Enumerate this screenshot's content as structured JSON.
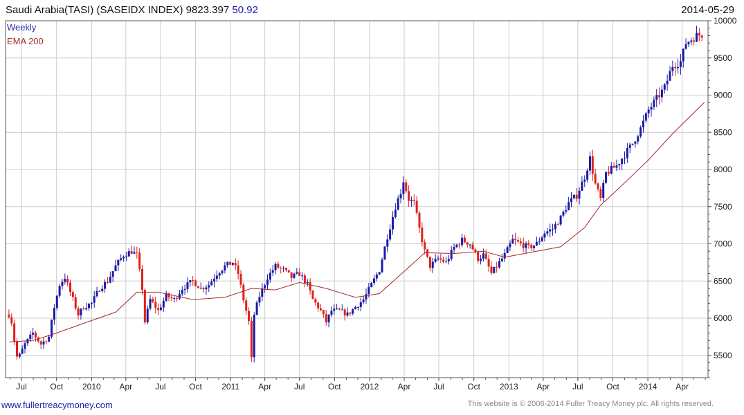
{
  "header": {
    "title": "Saudi Arabia(TASI) (SASEIDX INDEX) 9823.397",
    "change": "50.92",
    "date": "2014-05-29"
  },
  "legend": {
    "weekly": "Weekly",
    "ema": "EMA 200"
  },
  "footer": {
    "url": "www.fullertreacymoney.com",
    "copyright": "This website is © 2008-2014 Fuller Treacy Money plc. All rights reserved."
  },
  "colors": {
    "up": "#1a1aa8",
    "down": "#e0201c",
    "ema": "#a52a2a",
    "grid": "#cccccc",
    "frame": "#555555"
  },
  "chart_data": {
    "type": "candlestick",
    "frequency": "weekly",
    "grid": true,
    "ylim": [
      5200,
      10000
    ],
    "y_axis_side": "right",
    "y_ticks": [
      5500,
      6000,
      6500,
      7000,
      7500,
      8000,
      8500,
      9000,
      9500,
      10000
    ],
    "x_ticks": [
      {
        "label": "Jul",
        "date": "2009-07-01"
      },
      {
        "label": "Oct",
        "date": "2009-10-01"
      },
      {
        "label": "2010",
        "date": "2010-01-01"
      },
      {
        "label": "Apr",
        "date": "2010-04-01"
      },
      {
        "label": "Jul",
        "date": "2010-07-01"
      },
      {
        "label": "Oct",
        "date": "2010-10-01"
      },
      {
        "label": "2011",
        "date": "2011-01-01"
      },
      {
        "label": "Apr",
        "date": "2011-04-01"
      },
      {
        "label": "Jul",
        "date": "2011-07-01"
      },
      {
        "label": "Oct",
        "date": "2011-10-01"
      },
      {
        "label": "2012",
        "date": "2012-01-01"
      },
      {
        "label": "Apr",
        "date": "2012-04-01"
      },
      {
        "label": "Jul",
        "date": "2012-07-01"
      },
      {
        "label": "Oct",
        "date": "2012-10-01"
      },
      {
        "label": "2013",
        "date": "2013-01-01"
      },
      {
        "label": "Apr",
        "date": "2013-04-01"
      },
      {
        "label": "Jul",
        "date": "2013-07-01"
      },
      {
        "label": "Oct",
        "date": "2013-10-01"
      },
      {
        "label": "2014",
        "date": "2014-01-01"
      },
      {
        "label": "Apr",
        "date": "2014-04-01"
      }
    ],
    "x_range": [
      "2009-05-20",
      "2014-06-08"
    ],
    "series": [
      {
        "name": "Weekly",
        "kind": "ohlc-candles",
        "anchors": [
          {
            "date": "2009-05-29",
            "close": 6050
          },
          {
            "date": "2009-06-05",
            "close": 5950
          },
          {
            "date": "2009-06-12",
            "close": 5700
          },
          {
            "date": "2009-06-19",
            "close": 5480
          },
          {
            "date": "2009-06-26",
            "close": 5500
          },
          {
            "date": "2009-07-10",
            "close": 5650
          },
          {
            "date": "2009-07-31",
            "close": 5800
          },
          {
            "date": "2009-08-21",
            "close": 5650
          },
          {
            "date": "2009-09-11",
            "close": 5750
          },
          {
            "date": "2009-09-25",
            "close": 6150
          },
          {
            "date": "2009-10-09",
            "close": 6450
          },
          {
            "date": "2009-10-23",
            "close": 6550
          },
          {
            "date": "2009-11-06",
            "close": 6350
          },
          {
            "date": "2009-11-27",
            "close": 6050
          },
          {
            "date": "2009-12-11",
            "close": 6150
          },
          {
            "date": "2010-01-01",
            "close": 6200
          },
          {
            "date": "2010-01-22",
            "close": 6400
          },
          {
            "date": "2010-02-12",
            "close": 6500
          },
          {
            "date": "2010-03-05",
            "close": 6700
          },
          {
            "date": "2010-03-26",
            "close": 6850
          },
          {
            "date": "2010-04-16",
            "close": 6900
          },
          {
            "date": "2010-04-30",
            "close": 6850
          },
          {
            "date": "2010-05-14",
            "close": 6400
          },
          {
            "date": "2010-05-21",
            "close": 5950
          },
          {
            "date": "2010-06-04",
            "close": 6250
          },
          {
            "date": "2010-06-25",
            "close": 6100
          },
          {
            "date": "2010-07-16",
            "close": 6300
          },
          {
            "date": "2010-08-06",
            "close": 6250
          },
          {
            "date": "2010-08-27",
            "close": 6400
          },
          {
            "date": "2010-09-24",
            "close": 6500
          },
          {
            "date": "2010-10-15",
            "close": 6400
          },
          {
            "date": "2010-11-05",
            "close": 6450
          },
          {
            "date": "2010-11-26",
            "close": 6600
          },
          {
            "date": "2010-12-17",
            "close": 6700
          },
          {
            "date": "2011-01-07",
            "close": 6750
          },
          {
            "date": "2011-01-21",
            "close": 6600
          },
          {
            "date": "2011-02-04",
            "close": 6250
          },
          {
            "date": "2011-02-18",
            "close": 5950
          },
          {
            "date": "2011-02-25",
            "close": 5450
          },
          {
            "date": "2011-03-04",
            "close": 6050
          },
          {
            "date": "2011-03-18",
            "close": 6300
          },
          {
            "date": "2011-04-08",
            "close": 6550
          },
          {
            "date": "2011-04-29",
            "close": 6700
          },
          {
            "date": "2011-05-20",
            "close": 6650
          },
          {
            "date": "2011-06-10",
            "close": 6550
          },
          {
            "date": "2011-07-01",
            "close": 6600
          },
          {
            "date": "2011-07-22",
            "close": 6450
          },
          {
            "date": "2011-08-05",
            "close": 6250
          },
          {
            "date": "2011-08-26",
            "close": 6100
          },
          {
            "date": "2011-09-09",
            "close": 5950
          },
          {
            "date": "2011-09-23",
            "close": 6100
          },
          {
            "date": "2011-10-14",
            "close": 6100
          },
          {
            "date": "2011-11-04",
            "close": 6050
          },
          {
            "date": "2011-11-25",
            "close": 6150
          },
          {
            "date": "2011-12-16",
            "close": 6250
          },
          {
            "date": "2012-01-06",
            "close": 6450
          },
          {
            "date": "2012-01-27",
            "close": 6650
          },
          {
            "date": "2012-02-17",
            "close": 7100
          },
          {
            "date": "2012-03-09",
            "close": 7500
          },
          {
            "date": "2012-03-23",
            "close": 7700
          },
          {
            "date": "2012-03-30",
            "close": 7850
          },
          {
            "date": "2012-04-13",
            "close": 7600
          },
          {
            "date": "2012-04-27",
            "close": 7550
          },
          {
            "date": "2012-05-11",
            "close": 7200
          },
          {
            "date": "2012-05-25",
            "close": 6900
          },
          {
            "date": "2012-06-08",
            "close": 6700
          },
          {
            "date": "2012-06-29",
            "close": 6800
          },
          {
            "date": "2012-07-20",
            "close": 6750
          },
          {
            "date": "2012-08-10",
            "close": 6950
          },
          {
            "date": "2012-08-31",
            "close": 7050
          },
          {
            "date": "2012-09-21",
            "close": 7000
          },
          {
            "date": "2012-10-12",
            "close": 6800
          },
          {
            "date": "2012-10-26",
            "close": 6850
          },
          {
            "date": "2012-11-16",
            "close": 6600
          },
          {
            "date": "2012-11-30",
            "close": 6700
          },
          {
            "date": "2012-12-21",
            "close": 6850
          },
          {
            "date": "2013-01-11",
            "close": 7050
          },
          {
            "date": "2013-02-01",
            "close": 7000
          },
          {
            "date": "2013-02-22",
            "close": 6950
          },
          {
            "date": "2013-03-15",
            "close": 7000
          },
          {
            "date": "2013-04-05",
            "close": 7150
          },
          {
            "date": "2013-04-26",
            "close": 7200
          },
          {
            "date": "2013-05-17",
            "close": 7350
          },
          {
            "date": "2013-06-07",
            "close": 7550
          },
          {
            "date": "2013-06-28",
            "close": 7650
          },
          {
            "date": "2013-07-19",
            "close": 7900
          },
          {
            "date": "2013-08-02",
            "close": 8150
          },
          {
            "date": "2013-08-16",
            "close": 7800
          },
          {
            "date": "2013-08-30",
            "close": 7600
          },
          {
            "date": "2013-09-13",
            "close": 7950
          },
          {
            "date": "2013-09-27",
            "close": 8000
          },
          {
            "date": "2013-10-11",
            "close": 8050
          },
          {
            "date": "2013-11-01",
            "close": 8200
          },
          {
            "date": "2013-11-22",
            "close": 8350
          },
          {
            "date": "2013-12-13",
            "close": 8550
          },
          {
            "date": "2014-01-03",
            "close": 8800
          },
          {
            "date": "2014-01-24",
            "close": 8950
          },
          {
            "date": "2014-02-14",
            "close": 9100
          },
          {
            "date": "2014-03-07",
            "close": 9400
          },
          {
            "date": "2014-03-28",
            "close": 9450
          },
          {
            "date": "2014-04-11",
            "close": 9700
          },
          {
            "date": "2014-04-25",
            "close": 9750
          },
          {
            "date": "2014-05-09",
            "close": 9800
          },
          {
            "date": "2014-05-29",
            "close": 9823.397
          }
        ]
      },
      {
        "name": "EMA 200",
        "kind": "line",
        "points": [
          {
            "date": "2009-05-29",
            "value": 5680
          },
          {
            "date": "2009-07-31",
            "value": 5700
          },
          {
            "date": "2009-09-25",
            "value": 5790
          },
          {
            "date": "2009-12-11",
            "value": 5930
          },
          {
            "date": "2010-03-05",
            "value": 6080
          },
          {
            "date": "2010-04-30",
            "value": 6350
          },
          {
            "date": "2010-06-25",
            "value": 6350
          },
          {
            "date": "2010-09-24",
            "value": 6250
          },
          {
            "date": "2010-12-17",
            "value": 6280
          },
          {
            "date": "2011-02-25",
            "value": 6400
          },
          {
            "date": "2011-04-29",
            "value": 6380
          },
          {
            "date": "2011-07-01",
            "value": 6480
          },
          {
            "date": "2011-09-09",
            "value": 6400
          },
          {
            "date": "2011-11-25",
            "value": 6280
          },
          {
            "date": "2012-01-27",
            "value": 6330
          },
          {
            "date": "2012-03-30",
            "value": 6620
          },
          {
            "date": "2012-05-25",
            "value": 6880
          },
          {
            "date": "2012-08-10",
            "value": 6870
          },
          {
            "date": "2012-10-26",
            "value": 6900
          },
          {
            "date": "2012-12-21",
            "value": 6820
          },
          {
            "date": "2013-02-22",
            "value": 6880
          },
          {
            "date": "2013-05-17",
            "value": 6960
          },
          {
            "date": "2013-07-19",
            "value": 7220
          },
          {
            "date": "2013-08-30",
            "value": 7520
          },
          {
            "date": "2013-11-01",
            "value": 7820
          },
          {
            "date": "2014-01-03",
            "value": 8130
          },
          {
            "date": "2014-03-07",
            "value": 8480
          },
          {
            "date": "2014-05-29",
            "value": 8900
          }
        ]
      }
    ]
  }
}
